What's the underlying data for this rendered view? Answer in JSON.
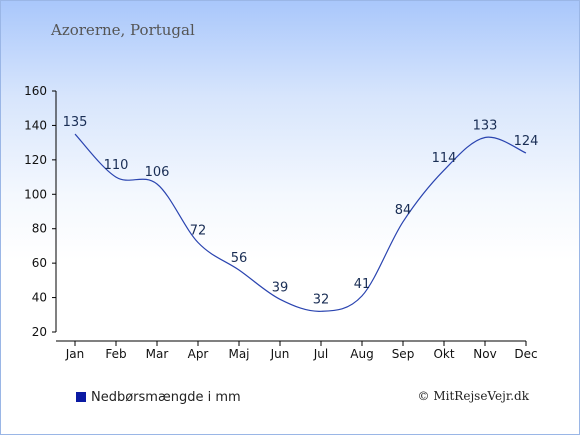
{
  "title": "Azorerne, Portugal",
  "legend_label": "Nedbørsmængde i mm",
  "credit": "© MitRejseVejr.dk",
  "colors": {
    "line": "#2a44b0",
    "legend_swatch": "#0b1aa3",
    "axis": "#000000",
    "label": "#1a2e55"
  },
  "chart_data": {
    "type": "line",
    "title": "Azorerne, Portugal",
    "xlabel": "",
    "ylabel": "",
    "categories": [
      "Jan",
      "Feb",
      "Mar",
      "Apr",
      "Maj",
      "Jun",
      "Jul",
      "Aug",
      "Sep",
      "Okt",
      "Nov",
      "Dec"
    ],
    "series": [
      {
        "name": "Nedbørsmængde i mm",
        "values": [
          135,
          110,
          106,
          72,
          56,
          39,
          32,
          41,
          84,
          114,
          133,
          124
        ]
      }
    ],
    "ylim": [
      20,
      160
    ],
    "yticks": [
      20,
      40,
      60,
      80,
      100,
      120,
      140,
      160
    ],
    "grid": false,
    "data_labels": true,
    "legend_position": "bottom-left"
  }
}
